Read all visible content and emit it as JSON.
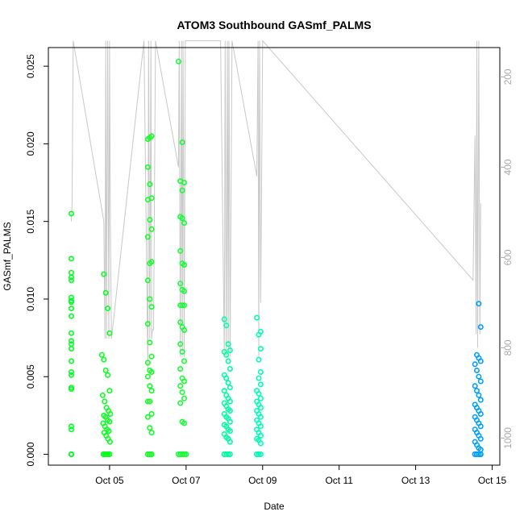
{
  "chart_data": {
    "type": "scatter",
    "title": "ATOM3 Southbound GASmf_PALMS",
    "xlabel": "Date",
    "ylabel": "GASmf_PALMS",
    "x_ticks": [
      "Oct 05",
      "Oct 07",
      "Oct 09",
      "Oct 11",
      "Oct 13",
      "Oct 15"
    ],
    "x_tick_values": [
      5,
      7,
      9,
      11,
      13,
      15
    ],
    "xlim": [
      3.4,
      15.2
    ],
    "y_ticks": [
      "0.000",
      "0.005",
      "0.010",
      "0.015",
      "0.020",
      "0.025"
    ],
    "y_tick_values": [
      0,
      0.005,
      0.01,
      0.015,
      0.02,
      0.025
    ],
    "ylim": [
      -0.0007,
      0.0262
    ],
    "y2_ticks": [
      "200",
      "400",
      "600",
      "800",
      "1000"
    ],
    "y2_tick_values": [
      200,
      400,
      600,
      800,
      1000
    ],
    "y2lim": [
      1060,
      135
    ],
    "y2_axis_color": "#aaaaaa",
    "altitude_line_color": "#c8c8c8",
    "series": [
      {
        "color": "#00ff22",
        "x": [
          4.0,
          4.0,
          4.0,
          4.0,
          4.0,
          4.0,
          4.0,
          4.0,
          4.0,
          4.0,
          4.0,
          4.0,
          4.0,
          4.0,
          4.0,
          4.0,
          4.0,
          4.0,
          4.0,
          4.0,
          4.0,
          4.0,
          4.0,
          4.0
        ],
        "y": [
          0.0155,
          0.0126,
          0.0117,
          0.0114,
          0.0112,
          0.0101,
          0.0099,
          0.0098,
          0.0094,
          0.0089,
          0.0078,
          0.0073,
          0.0071,
          0.0068,
          0.006,
          0.0053,
          0.0051,
          0.0043,
          0.0042,
          0.0018,
          0.0016,
          0.0,
          0.0,
          0.0
        ]
      },
      {
        "color": "#0cff22",
        "x": [
          4.85,
          4.9,
          4.95,
          5.0,
          4.8,
          4.85,
          4.9,
          4.95,
          5.0,
          4.82,
          4.87,
          4.92,
          4.97,
          5.02,
          4.85,
          4.9,
          4.95,
          5.0,
          4.83,
          4.88,
          4.93,
          4.98,
          4.86,
          4.91,
          4.96,
          5.01,
          4.84,
          4.89,
          4.94,
          4.99,
          4.85,
          4.9,
          4.95,
          5.0,
          4.88,
          4.93
        ],
        "y": [
          0.0116,
          0.0104,
          0.0094,
          0.0078,
          0.0064,
          0.0061,
          0.0054,
          0.0051,
          0.0041,
          0.0038,
          0.0034,
          0.003,
          0.0028,
          0.0026,
          0.0025,
          0.0024,
          0.0022,
          0.0021,
          0.002,
          0.0018,
          0.0016,
          0.0015,
          0.0014,
          0.0012,
          0.001,
          0.0008,
          0.0,
          0.0,
          0.0,
          0.0,
          0.0,
          0.0,
          0.0,
          0.0,
          0.0,
          0.0
        ]
      },
      {
        "color": "#11ff22",
        "x": [
          6.0,
          6.05,
          6.1,
          6.0,
          6.05,
          6.1,
          6.0,
          6.05,
          6.1,
          6.0,
          6.05,
          6.1,
          6.0,
          6.05,
          6.1,
          6.0,
          6.05,
          6.1,
          6.0,
          6.05,
          6.1,
          6.0,
          6.05,
          6.1,
          6.0,
          6.05,
          6.1,
          6.0,
          6.05,
          6.1,
          6.0,
          6.05,
          6.1,
          6.0,
          6.05,
          6.1,
          6.05
        ],
        "y": [
          0.0203,
          0.0204,
          0.0205,
          0.0185,
          0.0174,
          0.0165,
          0.0164,
          0.0151,
          0.0145,
          0.014,
          0.0123,
          0.0124,
          0.0112,
          0.01,
          0.0095,
          0.0084,
          0.0072,
          0.0063,
          0.0059,
          0.0054,
          0.0053,
          0.005,
          0.0044,
          0.0041,
          0.0034,
          0.0034,
          0.0026,
          0.0024,
          0.0017,
          0.0014,
          0.0,
          0.0,
          0.0,
          0.0,
          0.0,
          0.0,
          0.0
        ]
      },
      {
        "color": "#14ff33",
        "x": [
          6.8,
          6.9,
          6.85,
          6.95,
          6.9,
          6.85,
          6.9,
          6.95,
          6.85,
          6.9,
          6.95,
          6.85,
          6.9,
          6.95,
          6.85,
          6.9,
          6.95,
          6.85,
          6.9,
          6.95,
          6.85,
          6.9,
          6.95,
          6.85,
          6.9,
          6.95,
          6.85,
          6.9,
          6.95,
          6.85,
          6.9,
          6.95,
          7.0,
          6.85,
          6.9,
          6.95,
          7.0,
          6.8,
          6.85,
          6.9,
          6.95
        ],
        "y": [
          0.0253,
          0.0201,
          0.0176,
          0.0175,
          0.017,
          0.0153,
          0.0152,
          0.0149,
          0.0131,
          0.0123,
          0.0122,
          0.011,
          0.0106,
          0.0105,
          0.0096,
          0.0096,
          0.0096,
          0.0085,
          0.0082,
          0.008,
          0.0071,
          0.0066,
          0.006,
          0.0055,
          0.0049,
          0.0047,
          0.0044,
          0.004,
          0.0036,
          0.0033,
          0.0021,
          0.002,
          0.0,
          0.0,
          0.0,
          0.0,
          0.0,
          0.0,
          0.0,
          0.0,
          0.0
        ]
      },
      {
        "color": "#00ffa0",
        "x": [
          8.0,
          8.05,
          8.1,
          8.15,
          8.0,
          8.05,
          8.1,
          8.15,
          8.0,
          8.05,
          8.1,
          8.15,
          8.0,
          8.05,
          8.1,
          8.15,
          8.0,
          8.05,
          8.1,
          8.15,
          8.0,
          8.05,
          8.1,
          8.15,
          8.0,
          8.05,
          8.1,
          8.15,
          8.0,
          8.05,
          8.1,
          8.15,
          8.0,
          8.05,
          8.1,
          8.15,
          8.0,
          8.1
        ],
        "y": [
          0.0087,
          0.0083,
          0.0071,
          0.0067,
          0.0066,
          0.0064,
          0.006,
          0.0055,
          0.0051,
          0.0049,
          0.0046,
          0.0043,
          0.0041,
          0.0038,
          0.0036,
          0.0034,
          0.0033,
          0.0031,
          0.0029,
          0.0028,
          0.0026,
          0.0024,
          0.0023,
          0.0021,
          0.0019,
          0.0018,
          0.0016,
          0.0015,
          0.0013,
          0.0011,
          0.001,
          0.0008,
          0.0,
          0.0,
          0.0,
          0.0,
          0.0,
          0.0
        ]
      },
      {
        "color": "#00ffb4",
        "x": [
          8.85,
          8.95,
          8.9,
          8.95,
          8.9,
          8.95,
          8.9,
          8.95,
          8.85,
          8.9,
          8.95,
          8.85,
          8.9,
          8.95,
          8.85,
          8.9,
          8.95,
          8.85,
          8.9,
          8.95,
          8.85,
          8.9,
          8.95,
          8.85,
          8.9,
          8.95,
          8.85,
          8.9,
          8.95,
          8.85,
          8.9
        ],
        "y": [
          0.0088,
          0.0079,
          0.0077,
          0.0068,
          0.0061,
          0.0053,
          0.0049,
          0.0045,
          0.0041,
          0.0039,
          0.0036,
          0.0034,
          0.0032,
          0.003,
          0.0028,
          0.0026,
          0.0024,
          0.0022,
          0.002,
          0.0018,
          0.0016,
          0.0014,
          0.0012,
          0.001,
          0.0009,
          0.0007,
          0.0,
          0.0,
          0.0,
          0.0,
          0.0
        ]
      },
      {
        "color": "#00a0ff",
        "x": [
          14.65,
          14.7,
          14.6,
          14.65,
          14.7,
          14.55,
          14.6,
          14.65,
          14.7,
          14.55,
          14.6,
          14.65,
          14.7,
          14.55,
          14.6,
          14.65,
          14.7,
          14.55,
          14.6,
          14.65,
          14.7,
          14.55,
          14.6,
          14.65,
          14.7,
          14.55,
          14.6,
          14.65,
          14.7,
          14.55,
          14.6,
          14.65,
          14.7,
          14.55,
          14.6,
          14.65,
          14.7
        ],
        "y": [
          0.0097,
          0.0082,
          0.0064,
          0.0062,
          0.006,
          0.0058,
          0.0054,
          0.005,
          0.0047,
          0.0044,
          0.0041,
          0.0038,
          0.0035,
          0.0032,
          0.003,
          0.0028,
          0.0026,
          0.0024,
          0.0022,
          0.002,
          0.0018,
          0.0016,
          0.0014,
          0.0012,
          0.001,
          0.0008,
          0.0006,
          0.0004,
          0.0003,
          0.0,
          0.0,
          0.0,
          0.0,
          0.0,
          0.0,
          0.0,
          0.0
        ]
      }
    ],
    "altitude_path": {
      "x": [
        4.0,
        4.02,
        4.05,
        4.85,
        4.88,
        4.9,
        4.92,
        4.95,
        4.98,
        5.0,
        5.02,
        5.05,
        5.9,
        6.0,
        6.02,
        6.05,
        6.08,
        6.1,
        6.12,
        6.15,
        6.2,
        6.8,
        6.82,
        6.85,
        6.88,
        6.9,
        6.92,
        6.95,
        6.98,
        7.05,
        7.9,
        8.0,
        8.02,
        8.05,
        8.08,
        8.1,
        8.12,
        8.15,
        8.2,
        8.85,
        8.88,
        8.9,
        8.92,
        8.95,
        9.0,
        14.5,
        14.55,
        14.58,
        14.6,
        14.62,
        14.65,
        14.68,
        14.7
      ],
      "y": [
        520,
        480,
        120,
        520,
        780,
        120,
        780,
        120,
        780,
        120,
        520,
        780,
        120,
        850,
        120,
        780,
        120,
        780,
        760,
        760,
        120,
        400,
        120,
        820,
        120,
        820,
        120,
        820,
        120,
        120,
        120,
        820,
        120,
        820,
        120,
        820,
        120,
        820,
        120,
        420,
        120,
        820,
        120,
        700,
        120,
        650,
        330,
        770,
        120,
        800,
        120,
        770,
        480
      ]
    }
  }
}
